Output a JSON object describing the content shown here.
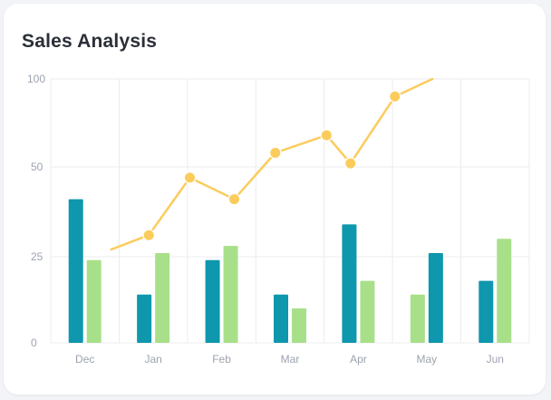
{
  "card": {
    "title": "Sales Analysis"
  },
  "colors": {
    "bar_primary": "#0e97ad",
    "bar_secondary": "#a8e08a",
    "line": "#fbcc5c",
    "grid": "#ececf0"
  },
  "chart_data": {
    "type": "bar",
    "title": "Sales Analysis",
    "categories": [
      "Dec",
      "Jan",
      "Feb",
      "Mar",
      "Apr",
      "May",
      "Jun"
    ],
    "yticks": [
      0,
      25,
      50,
      100
    ],
    "y_scale": "non-uniform (ticks 0, 25, 50, 100 evenly spaced)",
    "grid": true,
    "legend": "none",
    "series": [
      {
        "type": "bar",
        "color": "#0e97ad",
        "values": [
          41,
          14,
          24,
          14,
          34,
          null,
          18
        ]
      },
      {
        "type": "bar",
        "color": "#a8e08a",
        "values": [
          24,
          26,
          28,
          10,
          18,
          14,
          30
        ]
      },
      {
        "type": "bar",
        "color": "#0e97ad",
        "values": [
          null,
          null,
          null,
          null,
          null,
          26,
          null
        ],
        "note": "May second bar"
      },
      {
        "type": "line",
        "color": "#fbcc5c",
        "points": [
          {
            "x": "Jan",
            "y": 27
          },
          {
            "x": "Jan",
            "y": 31
          },
          {
            "x": "Feb",
            "y": 47
          },
          {
            "x": "Feb",
            "y": 41
          },
          {
            "x": "Mar",
            "y": 58
          },
          {
            "x": "Mar",
            "y": 68
          },
          {
            "x": "Apr",
            "y": 52
          },
          {
            "x": "Apr",
            "y": 90
          },
          {
            "x": "May",
            "y": 100
          }
        ]
      }
    ]
  }
}
